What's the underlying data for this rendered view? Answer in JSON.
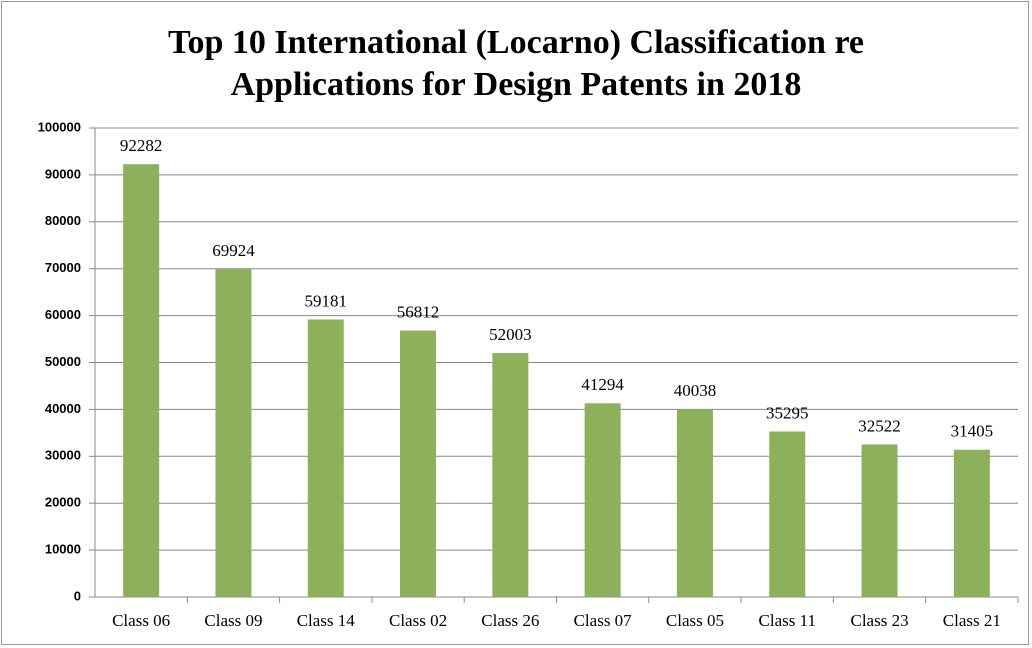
{
  "chart_data": {
    "type": "bar",
    "title": "Top 10 International (Locarno) Classification re Applications for Design Patents in 2018",
    "categories": [
      "Class 06",
      "Class 09",
      "Class 14",
      "Class 02",
      "Class 26",
      "Class 07",
      "Class 05",
      "Class 11",
      "Class 23",
      "Class 21"
    ],
    "values": [
      92282,
      69924,
      59181,
      56812,
      52003,
      41294,
      40038,
      35295,
      32522,
      31405
    ],
    "color": "#8db05a",
    "ylim": [
      0,
      100000
    ],
    "yticks": [
      0,
      10000,
      20000,
      30000,
      40000,
      50000,
      60000,
      70000,
      80000,
      90000,
      100000
    ],
    "grid": true
  }
}
